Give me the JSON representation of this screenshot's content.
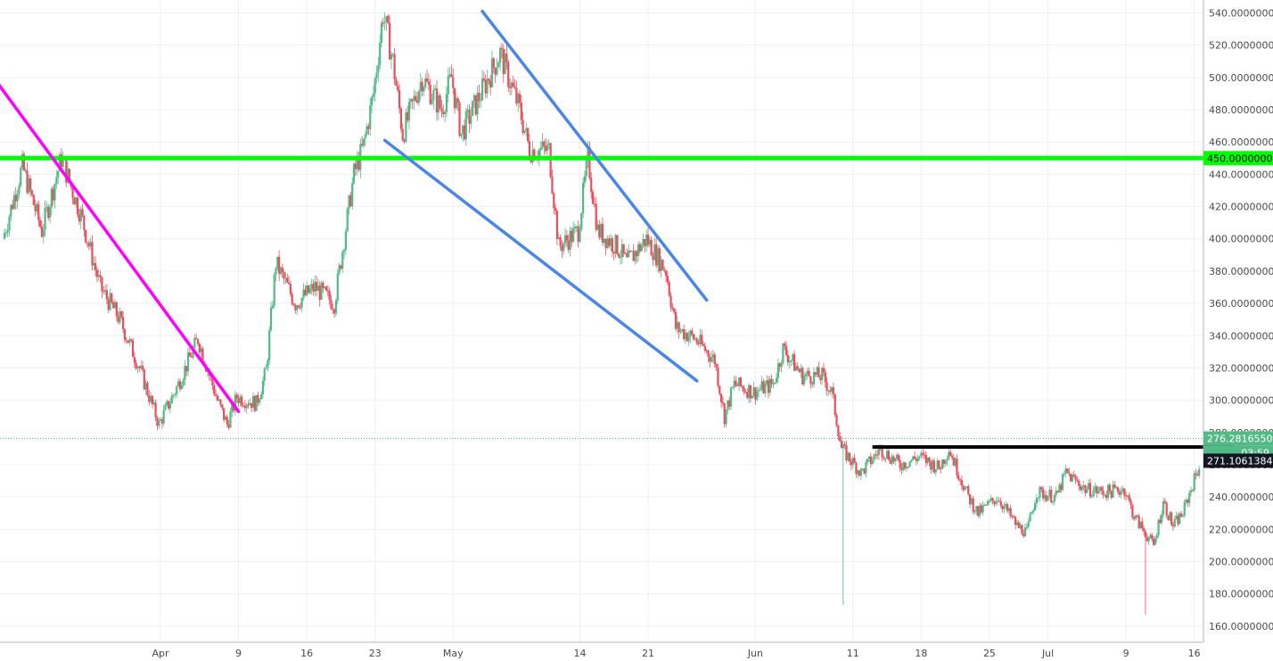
{
  "chart_data": {
    "type": "candlestick",
    "title": "",
    "xlabel": "",
    "ylabel": "",
    "ylim": [
      150,
      548
    ],
    "grid": true,
    "y_ticks": [
      "160.00000000",
      "180.00000000",
      "200.00000000",
      "220.00000000",
      "240.00000000",
      "260.00000000",
      "280.00000000",
      "300.00000000",
      "320.00000000",
      "340.00000000",
      "360.00000000",
      "380.00000000",
      "400.00000000",
      "420.00000000",
      "440.00000000",
      "460.00000000",
      "480.00000000",
      "500.00000000",
      "520.00000000",
      "540.00000000"
    ],
    "x_ticks": [
      {
        "label": "Apr",
        "date": "2018-04-01"
      },
      {
        "label": "9",
        "date": "2018-04-09"
      },
      {
        "label": "16",
        "date": "2018-04-16"
      },
      {
        "label": "23",
        "date": "2018-04-23"
      },
      {
        "label": "May",
        "date": "2018-05-01"
      },
      {
        "label": "14",
        "date": "2018-05-14"
      },
      {
        "label": "21",
        "date": "2018-05-21"
      },
      {
        "label": "Jun",
        "date": "2018-06-01"
      },
      {
        "label": "11",
        "date": "2018-06-11"
      },
      {
        "label": "18",
        "date": "2018-06-18"
      },
      {
        "label": "25",
        "date": "2018-06-25"
      },
      {
        "label": "Jul",
        "date": "2018-07-01"
      },
      {
        "label": "9",
        "date": "2018-07-09"
      },
      {
        "label": "16",
        "date": "2018-07-16"
      }
    ],
    "x_start": "2018-03-16",
    "x_end": "2018-07-21",
    "price_path": [
      {
        "date": "2018-03-16",
        "price": 400
      },
      {
        "date": "2018-03-18",
        "price": 445
      },
      {
        "date": "2018-03-20",
        "price": 405
      },
      {
        "date": "2018-03-22",
        "price": 450
      },
      {
        "date": "2018-03-24",
        "price": 415
      },
      {
        "date": "2018-03-26",
        "price": 370
      },
      {
        "date": "2018-03-28",
        "price": 350
      },
      {
        "date": "2018-03-30",
        "price": 320
      },
      {
        "date": "2018-04-01",
        "price": 285
      },
      {
        "date": "2018-04-03",
        "price": 310
      },
      {
        "date": "2018-04-05",
        "price": 338
      },
      {
        "date": "2018-04-07",
        "price": 300
      },
      {
        "date": "2018-04-08",
        "price": 285
      },
      {
        "date": "2018-04-09",
        "price": 302
      },
      {
        "date": "2018-04-11",
        "price": 298
      },
      {
        "date": "2018-04-12",
        "price": 318
      },
      {
        "date": "2018-04-13",
        "price": 385
      },
      {
        "date": "2018-04-15",
        "price": 360
      },
      {
        "date": "2018-04-17",
        "price": 370
      },
      {
        "date": "2018-04-19",
        "price": 360
      },
      {
        "date": "2018-04-21",
        "price": 440
      },
      {
        "date": "2018-04-22",
        "price": 458
      },
      {
        "date": "2018-04-23",
        "price": 490
      },
      {
        "date": "2018-04-24",
        "price": 540
      },
      {
        "date": "2018-04-25",
        "price": 510
      },
      {
        "date": "2018-04-26",
        "price": 465
      },
      {
        "date": "2018-04-28",
        "price": 500
      },
      {
        "date": "2018-04-30",
        "price": 480
      },
      {
        "date": "2018-05-01",
        "price": 500
      },
      {
        "date": "2018-05-02",
        "price": 465
      },
      {
        "date": "2018-05-04",
        "price": 490
      },
      {
        "date": "2018-05-06",
        "price": 515
      },
      {
        "date": "2018-05-08",
        "price": 480
      },
      {
        "date": "2018-05-09",
        "price": 455
      },
      {
        "date": "2018-05-11",
        "price": 455
      },
      {
        "date": "2018-05-12",
        "price": 395
      },
      {
        "date": "2018-05-14",
        "price": 405
      },
      {
        "date": "2018-05-15",
        "price": 450
      },
      {
        "date": "2018-05-16",
        "price": 405
      },
      {
        "date": "2018-05-18",
        "price": 395
      },
      {
        "date": "2018-05-19",
        "price": 385
      },
      {
        "date": "2018-05-21",
        "price": 400
      },
      {
        "date": "2018-05-23",
        "price": 380
      },
      {
        "date": "2018-05-24",
        "price": 345
      },
      {
        "date": "2018-05-26",
        "price": 338
      },
      {
        "date": "2018-05-28",
        "price": 325
      },
      {
        "date": "2018-05-29",
        "price": 290
      },
      {
        "date": "2018-05-30",
        "price": 310
      },
      {
        "date": "2018-06-01",
        "price": 305
      },
      {
        "date": "2018-06-03",
        "price": 310
      },
      {
        "date": "2018-06-04",
        "price": 332
      },
      {
        "date": "2018-06-06",
        "price": 315
      },
      {
        "date": "2018-06-08",
        "price": 315
      },
      {
        "date": "2018-06-09",
        "price": 305
      },
      {
        "date": "2018-06-10",
        "price": 270
      },
      {
        "date": "2018-06-12",
        "price": 255
      },
      {
        "date": "2018-06-14",
        "price": 270
      },
      {
        "date": "2018-06-16",
        "price": 260
      },
      {
        "date": "2018-06-18",
        "price": 265
      },
      {
        "date": "2018-06-20",
        "price": 258
      },
      {
        "date": "2018-06-21",
        "price": 270
      },
      {
        "date": "2018-06-23",
        "price": 240
      },
      {
        "date": "2018-06-24",
        "price": 230
      },
      {
        "date": "2018-06-26",
        "price": 240
      },
      {
        "date": "2018-06-28",
        "price": 222
      },
      {
        "date": "2018-06-29",
        "price": 218
      },
      {
        "date": "2018-06-30",
        "price": 243
      },
      {
        "date": "2018-07-02",
        "price": 240
      },
      {
        "date": "2018-07-03",
        "price": 255
      },
      {
        "date": "2018-07-05",
        "price": 245
      },
      {
        "date": "2018-07-07",
        "price": 243
      },
      {
        "date": "2018-07-09",
        "price": 245
      },
      {
        "date": "2018-07-10",
        "price": 228
      },
      {
        "date": "2018-07-12",
        "price": 210
      },
      {
        "date": "2018-07-13",
        "price": 237
      },
      {
        "date": "2018-07-14",
        "price": 222
      },
      {
        "date": "2018-07-15",
        "price": 230
      },
      {
        "date": "2018-07-16",
        "price": 248
      },
      {
        "date": "2018-07-17",
        "price": 265
      },
      {
        "date": "2018-07-19",
        "price": 262
      },
      {
        "date": "2018-07-20",
        "price": 276.28
      }
    ],
    "spikes": [
      {
        "date": "2018-06-10",
        "low": 173
      },
      {
        "date": "2018-07-11",
        "low": 167
      }
    ],
    "trendlines": [
      {
        "name": "magenta-downtrend",
        "color": "#ff00ff",
        "from": {
          "date": "2018-03-15",
          "price": 499
        },
        "to": {
          "date": "2018-04-09",
          "price": 293
        }
      },
      {
        "name": "channel-upper",
        "color": "#4a86e8",
        "from": {
          "date": "2018-05-04",
          "price": 541
        },
        "to": {
          "date": "2018-05-27",
          "price": 362
        }
      },
      {
        "name": "channel-lower",
        "color": "#4a86e8",
        "from": {
          "date": "2018-04-24",
          "price": 461
        },
        "to": {
          "date": "2018-05-26",
          "price": 312
        }
      }
    ],
    "horizontal_lines": [
      {
        "name": "resistance-450",
        "color": "#00ff00",
        "price": 450,
        "label": "450.00000000"
      },
      {
        "name": "neckline-black",
        "color": "#000000",
        "price": 271,
        "from": "2018-06-13",
        "to": "2018-07-20"
      }
    ],
    "price_tags": [
      {
        "name": "last-price-tag",
        "label": "276.28165500",
        "price": 276.28,
        "bg": "#53b987",
        "fg": "#ffffff"
      },
      {
        "name": "countdown-tag",
        "label": "03:59",
        "price": 267.4,
        "bg": "#53b987",
        "fg": "#ffffff"
      },
      {
        "name": "crosshair-price-tag",
        "label": "271.10613846",
        "price": 262.5,
        "bg": "#131722",
        "fg": "#ffffff"
      },
      {
        "name": "resistance-price-tag",
        "label": "450.00000000",
        "price": 450,
        "bg": "#00ff00",
        "fg": "#000000"
      }
    ],
    "last_price": 276.281655,
    "colors": {
      "up": "#53b987",
      "down": "#eb4d5c",
      "grid": "#eef0f3",
      "axis_text": "#4a4a4a"
    }
  }
}
